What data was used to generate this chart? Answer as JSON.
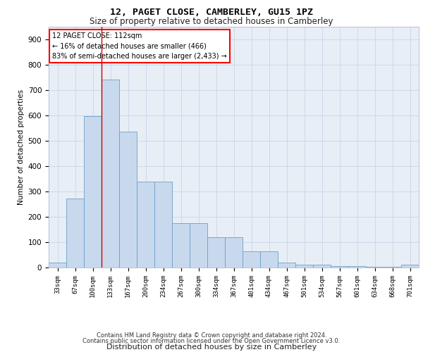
{
  "title1": "12, PAGET CLOSE, CAMBERLEY, GU15 1PZ",
  "title2": "Size of property relative to detached houses in Camberley",
  "xlabel": "Distribution of detached houses by size in Camberley",
  "ylabel": "Number of detached properties",
  "categories": [
    "33sqm",
    "67sqm",
    "100sqm",
    "133sqm",
    "167sqm",
    "200sqm",
    "234sqm",
    "267sqm",
    "300sqm",
    "334sqm",
    "367sqm",
    "401sqm",
    "434sqm",
    "467sqm",
    "501sqm",
    "534sqm",
    "567sqm",
    "601sqm",
    "634sqm",
    "668sqm",
    "701sqm"
  ],
  "values": [
    20,
    272,
    595,
    740,
    535,
    338,
    338,
    175,
    175,
    118,
    118,
    65,
    65,
    20,
    12,
    12,
    5,
    5,
    2,
    2,
    10
  ],
  "bar_color": "#c9d9ed",
  "bar_edge_color": "#6b9ec8",
  "annotation_text": "12 PAGET CLOSE: 112sqm\n← 16% of detached houses are smaller (466)\n83% of semi-detached houses are larger (2,433) →",
  "property_line_x": 2.5,
  "footer1": "Contains HM Land Registry data © Crown copyright and database right 2024.",
  "footer2": "Contains public sector information licensed under the Open Government Licence v3.0.",
  "background_color": "#ffffff",
  "grid_color": "#cdd8ea",
  "plot_bg_color": "#e8eef6",
  "ylim": [
    0,
    950
  ],
  "yticks": [
    0,
    100,
    200,
    300,
    400,
    500,
    600,
    700,
    800,
    900
  ]
}
